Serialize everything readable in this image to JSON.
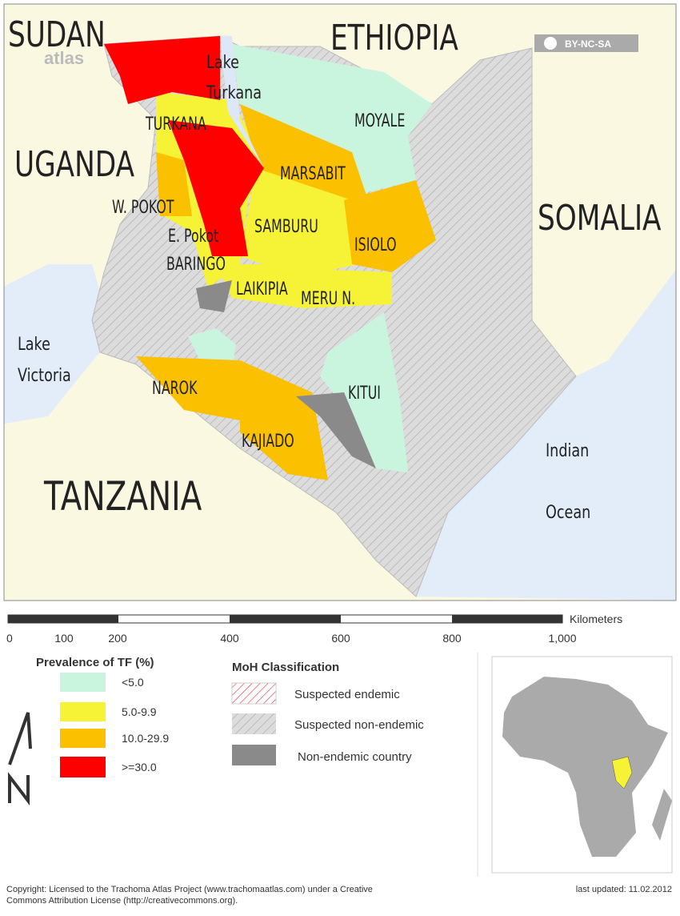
{
  "map": {
    "countries": [
      "SUDAN",
      "ETHIOPIA",
      "UGANDA",
      "SOMALIA",
      "TANZANIA"
    ],
    "water": [
      [
        "Lake",
        "Turkana"
      ],
      [
        "Lake",
        "Victoria"
      ],
      [
        "Indian",
        "Ocean"
      ]
    ],
    "districts": [
      "TURKANA",
      "MOYALE",
      "MARSABIT",
      "W. POKOT",
      "SAMBURU",
      "ISIOLO",
      "E. Pokot",
      "BARINGO",
      "LAIKIPIA",
      "MERU N.",
      "NAROK",
      "KITUI",
      "KAJIADO"
    ],
    "atlas": "atlas",
    "license": "BY-NC-SA"
  },
  "scale": {
    "ticks": [
      "0",
      "100",
      "200",
      "400",
      "600",
      "800",
      "1,000"
    ],
    "unit": "Kilometers"
  },
  "legend_tf": {
    "title": "Prevalence of TF  (%)",
    "items": [
      "<5.0",
      "5.0-9.9",
      "10.0-29.9",
      ">=30.0"
    ]
  },
  "legend_moh": {
    "title": "MoH Classification",
    "items": [
      "Suspected endemic",
      "Suspected non-endemic",
      "Non-endemic country"
    ]
  },
  "footer": {
    "copyright": [
      "Copyright: Licensed to the Trachoma Atlas Project (www.trachomaatlas.com) under a Creative",
      "Commons Attribution License (http://creativecommons.org)."
    ],
    "updated": "last updated: 11.02.2012"
  }
}
